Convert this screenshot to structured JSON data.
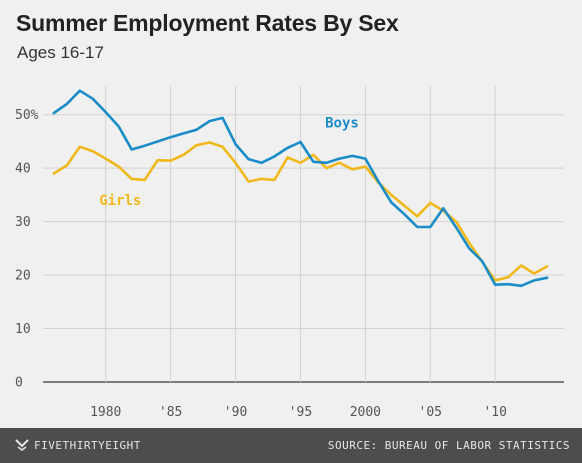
{
  "header": {
    "title": "Summer Employment Rates By Sex",
    "subtitle": "Ages 16-17"
  },
  "footer": {
    "brand": "FIVETHIRTYEIGHT",
    "source": "SOURCE: BUREAU OF LABOR STATISTICS"
  },
  "colors": {
    "boys": "#1a8cc8",
    "girls": "#f0b81b",
    "grid": "#d2d2d2",
    "baseline": "#555555",
    "footer_bg": "#4d4d4d"
  },
  "chart_data": {
    "type": "line",
    "title": "Summer Employment Rates By Sex",
    "subtitle": "Ages 16-17",
    "xlabel": "",
    "ylabel": "",
    "xlim": [
      1975.4,
      2015.3
    ],
    "ylim": [
      0,
      55
    ],
    "yticks": [
      {
        "value": 0,
        "label": "0"
      },
      {
        "value": 10,
        "label": "10"
      },
      {
        "value": 20,
        "label": "20"
      },
      {
        "value": 30,
        "label": "30"
      },
      {
        "value": 40,
        "label": "40"
      },
      {
        "value": 50,
        "label": "50%"
      }
    ],
    "xticks": [
      {
        "value": 1980,
        "label": "1980"
      },
      {
        "value": 1985,
        "label": "'85"
      },
      {
        "value": 1990,
        "label": "'90"
      },
      {
        "value": 1995,
        "label": "'95"
      },
      {
        "value": 2000,
        "label": "2000"
      },
      {
        "value": 2005,
        "label": "'05"
      },
      {
        "value": 2010,
        "label": "'10"
      }
    ],
    "grid": true,
    "legend": "inline labels",
    "x": [
      1976,
      1977,
      1978,
      1979,
      1980,
      1981,
      1982,
      1983,
      1984,
      1985,
      1986,
      1987,
      1988,
      1989,
      1990,
      1991,
      1992,
      1993,
      1994,
      1995,
      1996,
      1997,
      1998,
      1999,
      2000,
      2001,
      2002,
      2003,
      2004,
      2005,
      2006,
      2007,
      2008,
      2009,
      2010,
      2011,
      2012,
      2013,
      2014
    ],
    "series": [
      {
        "name": "Boys",
        "color": "#1a8cc8",
        "label_at": [
          1996.9,
          47.6
        ],
        "values": [
          50.3,
          52.0,
          54.5,
          53.0,
          50.5,
          47.8,
          43.5,
          44.2,
          45.0,
          45.8,
          46.5,
          47.2,
          48.8,
          49.4,
          44.5,
          41.7,
          41.0,
          42.2,
          43.8,
          44.9,
          41.2,
          41.0,
          41.8,
          42.3,
          41.8,
          37.5,
          33.6,
          31.4,
          29.0,
          29.0,
          32.5,
          28.9,
          25.0,
          22.6,
          18.2,
          18.3,
          18.0,
          19.0,
          19.5
        ]
      },
      {
        "name": "Girls",
        "color": "#f0b81b",
        "label_at": [
          1979.5,
          33.1
        ],
        "values": [
          39.0,
          40.5,
          44.0,
          43.2,
          41.8,
          40.3,
          38.0,
          37.8,
          41.5,
          41.4,
          42.5,
          44.3,
          44.8,
          44.0,
          41.0,
          37.5,
          38.0,
          37.8,
          42.0,
          41.0,
          42.5,
          40.0,
          41.0,
          39.8,
          40.3,
          37.3,
          35.0,
          33.0,
          31.0,
          33.5,
          32.0,
          30.0,
          26.0,
          22.5,
          19.0,
          19.6,
          21.8,
          20.3,
          21.6
        ]
      }
    ]
  }
}
